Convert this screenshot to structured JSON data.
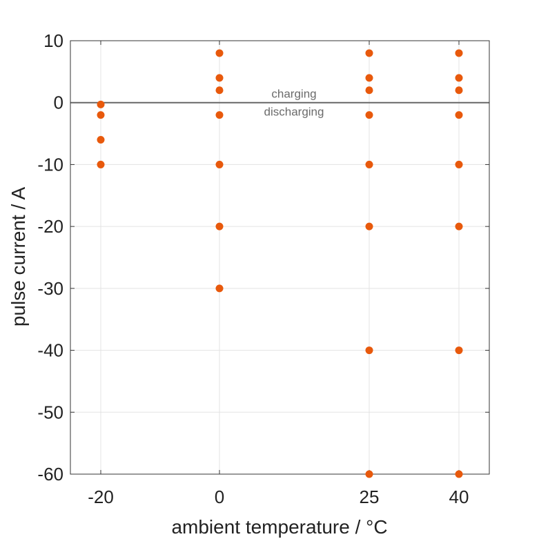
{
  "chart_data": {
    "type": "scatter",
    "title": "",
    "xlabel": "ambient temperature / °C",
    "ylabel": "pulse current / A",
    "x_categories": [
      "-20",
      "0",
      "25",
      "40"
    ],
    "yticks": [
      10,
      0,
      -10,
      -20,
      -30,
      -40,
      -50,
      -60
    ],
    "ylim": [
      -60,
      10
    ],
    "grid": true,
    "marker_color": "#e8590c",
    "reference_line": {
      "y": 0,
      "color": "#666666",
      "label_above": "charging",
      "label_below": "discharging"
    },
    "points": [
      {
        "x": "-20",
        "y": -0.3
      },
      {
        "x": "-20",
        "y": -2
      },
      {
        "x": "-20",
        "y": -6
      },
      {
        "x": "-20",
        "y": -10
      },
      {
        "x": "0",
        "y": 8
      },
      {
        "x": "0",
        "y": 4
      },
      {
        "x": "0",
        "y": 2
      },
      {
        "x": "0",
        "y": -2
      },
      {
        "x": "0",
        "y": -10
      },
      {
        "x": "0",
        "y": -20
      },
      {
        "x": "0",
        "y": -30
      },
      {
        "x": "25",
        "y": 8
      },
      {
        "x": "25",
        "y": 4
      },
      {
        "x": "25",
        "y": 2
      },
      {
        "x": "25",
        "y": -2
      },
      {
        "x": "25",
        "y": -10
      },
      {
        "x": "25",
        "y": -20
      },
      {
        "x": "25",
        "y": -40
      },
      {
        "x": "25",
        "y": -60
      },
      {
        "x": "40",
        "y": 8
      },
      {
        "x": "40",
        "y": 4
      },
      {
        "x": "40",
        "y": 2
      },
      {
        "x": "40",
        "y": -2
      },
      {
        "x": "40",
        "y": -10
      },
      {
        "x": "40",
        "y": -20
      },
      {
        "x": "40",
        "y": -40
      },
      {
        "x": "40",
        "y": -60
      }
    ]
  }
}
